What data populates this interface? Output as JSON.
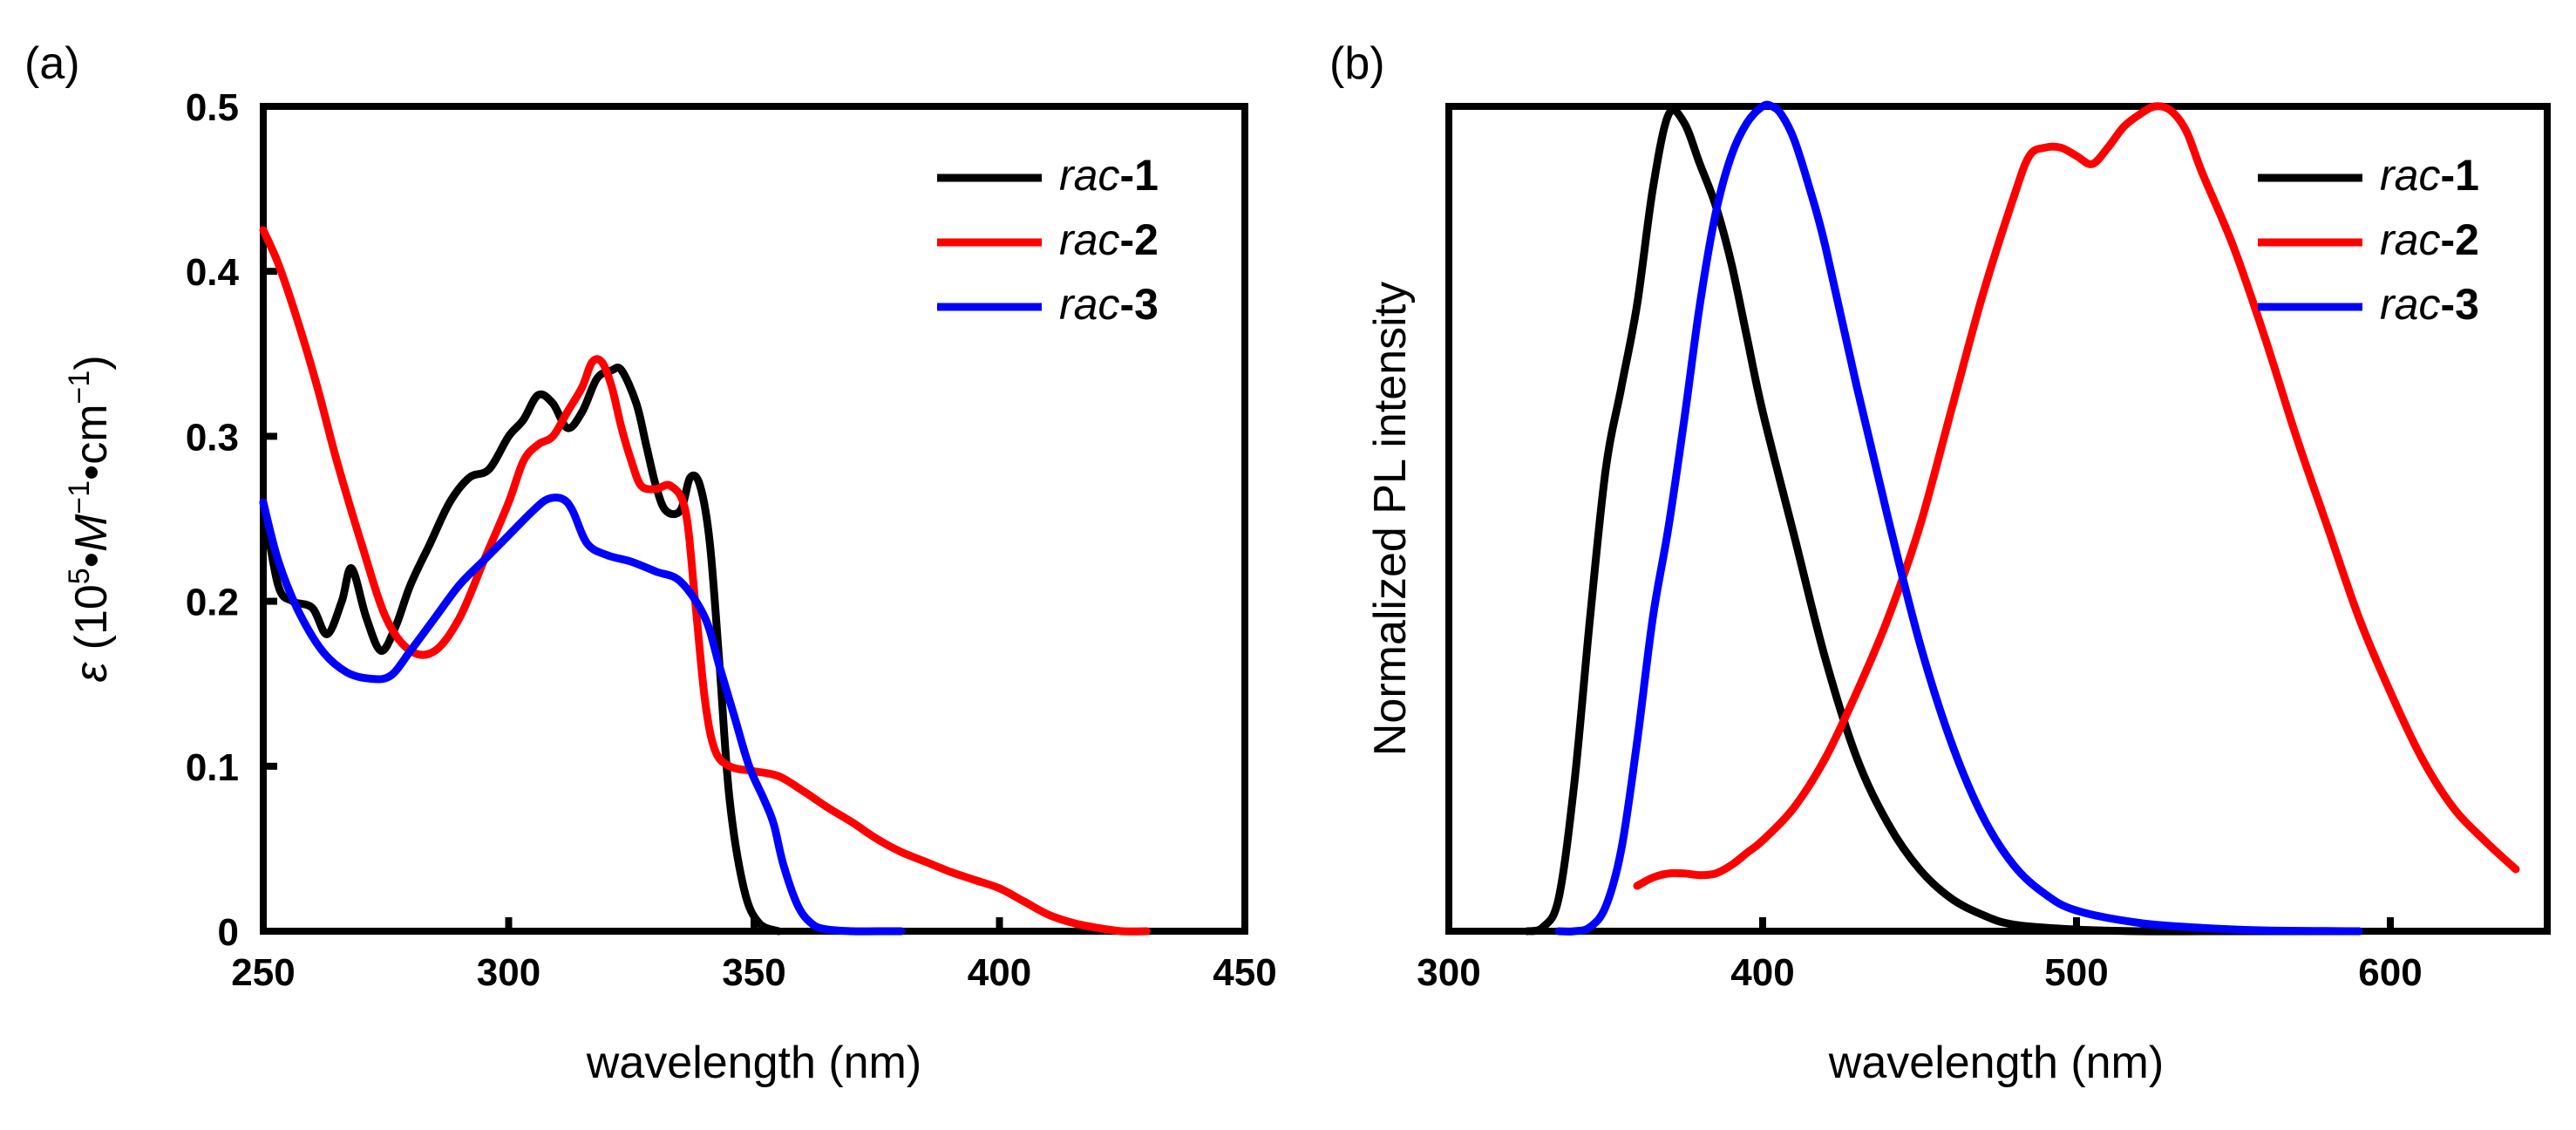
{
  "chart_data": [
    {
      "type": "line",
      "panel": "(a)",
      "xlabel": "wavelength (nm)",
      "ylabel": {
        "symbol": "ε",
        "open": " (10",
        "exp": "5",
        "dot1": "•",
        "unit": "M",
        "exp_neg1": "−1",
        "dot2": "•cm",
        "exp_neg2": "−1",
        "close": ")"
      },
      "xlim": [
        250,
        450
      ],
      "ylim": [
        0,
        0.5
      ],
      "xticks": [
        "250",
        "300",
        "350",
        "400",
        "450"
      ],
      "yticks": [
        "0",
        "0.1",
        "0.2",
        "0.3",
        "0.4",
        "0.5"
      ],
      "xtick_values": [
        250,
        300,
        350,
        400,
        450
      ],
      "ytick_values": [
        0,
        0.1,
        0.2,
        0.3,
        0.4,
        0.5
      ],
      "legend_position": "top-right",
      "series": [
        {
          "name": "rac-1",
          "name_italic": "rac",
          "name_bold": "-1",
          "color": "#000000",
          "x": [
            250,
            253,
            256,
            260,
            263,
            266,
            268,
            271,
            274,
            277,
            280,
            284,
            288,
            292,
            296,
            300,
            303,
            306,
            309,
            312,
            315,
            318,
            321,
            323,
            326,
            328,
            330,
            332,
            335,
            337,
            339,
            341,
            343,
            345,
            348,
            351,
            355
          ],
          "y": [
            0.26,
            0.21,
            0.2,
            0.196,
            0.18,
            0.2,
            0.22,
            0.19,
            0.17,
            0.185,
            0.21,
            0.235,
            0.26,
            0.275,
            0.28,
            0.3,
            0.31,
            0.325,
            0.32,
            0.305,
            0.315,
            0.335,
            0.34,
            0.34,
            0.32,
            0.295,
            0.27,
            0.255,
            0.255,
            0.275,
            0.27,
            0.235,
            0.16,
            0.08,
            0.025,
            0.005,
            0.0
          ]
        },
        {
          "name": "rac-2",
          "name_italic": "rac",
          "name_bold": "-2",
          "color": "#ff0000",
          "x": [
            250,
            253,
            257,
            261,
            265,
            270,
            275,
            280,
            285,
            290,
            295,
            300,
            303,
            306,
            309,
            312,
            315,
            317,
            319,
            321,
            323,
            325,
            327,
            330,
            333,
            336,
            338,
            340,
            342,
            345,
            350,
            355,
            360,
            365,
            370,
            375,
            380,
            385,
            390,
            395,
            400,
            405,
            410,
            415,
            420,
            425,
            430
          ],
          "y": [
            0.425,
            0.405,
            0.37,
            0.33,
            0.285,
            0.235,
            0.19,
            0.17,
            0.17,
            0.19,
            0.225,
            0.26,
            0.285,
            0.295,
            0.3,
            0.315,
            0.33,
            0.345,
            0.345,
            0.33,
            0.305,
            0.285,
            0.27,
            0.268,
            0.27,
            0.255,
            0.2,
            0.14,
            0.11,
            0.1,
            0.097,
            0.094,
            0.085,
            0.075,
            0.066,
            0.056,
            0.048,
            0.042,
            0.036,
            0.031,
            0.026,
            0.018,
            0.01,
            0.005,
            0.002,
            0.0,
            0.0
          ]
        },
        {
          "name": "rac-3",
          "name_italic": "rac",
          "name_bold": "-3",
          "color": "#0000ff",
          "x": [
            250,
            253,
            257,
            262,
            267,
            272,
            276,
            280,
            285,
            290,
            295,
            300,
            305,
            308,
            311,
            313,
            316,
            320,
            325,
            330,
            335,
            340,
            343,
            346,
            349,
            352,
            354,
            356,
            359,
            362,
            365,
            370,
            375,
            380
          ],
          "y": [
            0.26,
            0.225,
            0.195,
            0.17,
            0.157,
            0.153,
            0.155,
            0.17,
            0.19,
            0.21,
            0.225,
            0.24,
            0.255,
            0.262,
            0.262,
            0.255,
            0.235,
            0.228,
            0.224,
            0.218,
            0.212,
            0.19,
            0.16,
            0.13,
            0.1,
            0.08,
            0.065,
            0.04,
            0.015,
            0.004,
            0.001,
            0.0,
            0.0,
            0.0
          ]
        }
      ]
    },
    {
      "type": "line",
      "panel": "(b)",
      "xlabel": "wavelength (nm)",
      "ylabel": "Normalized PL intensity",
      "xlim": [
        300,
        650
      ],
      "ylim": [
        0,
        1.0
      ],
      "xticks": [
        "300",
        "400",
        "500",
        "600"
      ],
      "xtick_values": [
        300,
        400,
        500,
        600
      ],
      "legend_position": "top-right",
      "series": [
        {
          "name": "rac-1",
          "name_italic": "rac",
          "name_bold": "-1",
          "color": "#000000",
          "x": [
            325,
            330,
            335,
            340,
            345,
            350,
            355,
            360,
            365,
            370,
            375,
            380,
            385,
            390,
            395,
            400,
            410,
            420,
            430,
            440,
            450,
            460,
            470,
            480,
            500,
            520,
            540,
            560,
            590
          ],
          "y": [
            0.0,
            0.005,
            0.04,
            0.18,
            0.38,
            0.56,
            0.66,
            0.76,
            0.9,
            0.99,
            0.98,
            0.93,
            0.88,
            0.81,
            0.72,
            0.63,
            0.48,
            0.33,
            0.21,
            0.13,
            0.075,
            0.04,
            0.02,
            0.008,
            0.002,
            0.0,
            0.0,
            0.0,
            0.0
          ]
        },
        {
          "name": "rac-2",
          "name_italic": "rac",
          "name_bold": "-2",
          "color": "#ff0000",
          "x": [
            360,
            365,
            370,
            375,
            380,
            385,
            390,
            395,
            400,
            410,
            420,
            430,
            440,
            450,
            460,
            470,
            480,
            485,
            490,
            495,
            500,
            505,
            510,
            515,
            520,
            525,
            530,
            535,
            540,
            550,
            560,
            570,
            580,
            590,
            600,
            610,
            620,
            630,
            640
          ],
          "y": [
            0.055,
            0.065,
            0.07,
            0.07,
            0.068,
            0.07,
            0.08,
            0.095,
            0.11,
            0.15,
            0.21,
            0.29,
            0.38,
            0.49,
            0.63,
            0.77,
            0.89,
            0.94,
            0.95,
            0.95,
            0.94,
            0.93,
            0.95,
            0.975,
            0.99,
            1.0,
            0.995,
            0.97,
            0.92,
            0.83,
            0.72,
            0.6,
            0.49,
            0.38,
            0.29,
            0.21,
            0.15,
            0.11,
            0.075
          ]
        },
        {
          "name": "rac-3",
          "name_italic": "rac",
          "name_bold": "-3",
          "color": "#0000ff",
          "x": [
            335,
            340,
            345,
            350,
            355,
            360,
            365,
            370,
            375,
            380,
            385,
            390,
            395,
            400,
            403,
            406,
            410,
            415,
            420,
            430,
            440,
            450,
            460,
            470,
            480,
            490,
            500,
            520,
            540,
            560,
            590
          ],
          "y": [
            0.0,
            0.0,
            0.005,
            0.03,
            0.1,
            0.23,
            0.38,
            0.49,
            0.62,
            0.76,
            0.87,
            0.94,
            0.98,
            1.0,
            1.0,
            0.99,
            0.96,
            0.9,
            0.83,
            0.66,
            0.5,
            0.35,
            0.23,
            0.14,
            0.08,
            0.045,
            0.025,
            0.01,
            0.004,
            0.001,
            0.0
          ]
        }
      ]
    }
  ]
}
